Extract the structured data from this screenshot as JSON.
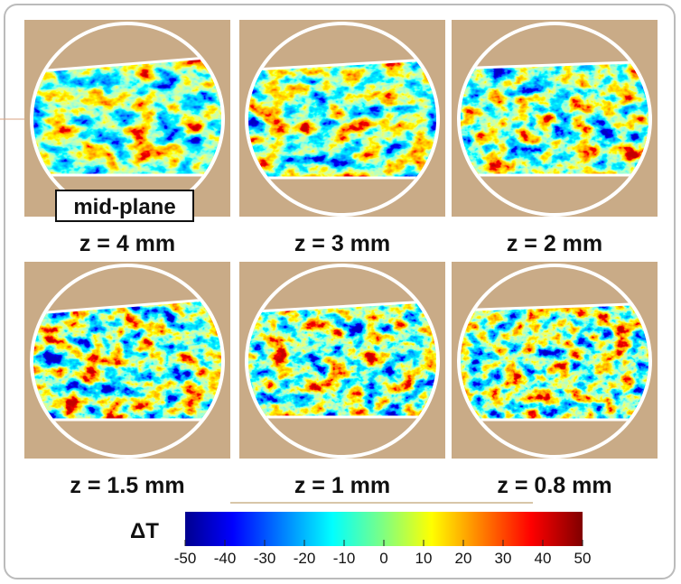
{
  "panels": [
    {
      "label": "z = 4 mm",
      "note": "mid-plane"
    },
    {
      "label": "z = 3 mm"
    },
    {
      "label": "z = 2 mm"
    },
    {
      "label": "z = 1.5 mm"
    },
    {
      "label": "z = 1 mm"
    },
    {
      "label": "z = 0.8 mm"
    }
  ],
  "colorbar": {
    "label": "ΔT",
    "ticks": [
      -50,
      -40,
      -30,
      -20,
      -10,
      0,
      10,
      20,
      30,
      40,
      50
    ]
  }
}
